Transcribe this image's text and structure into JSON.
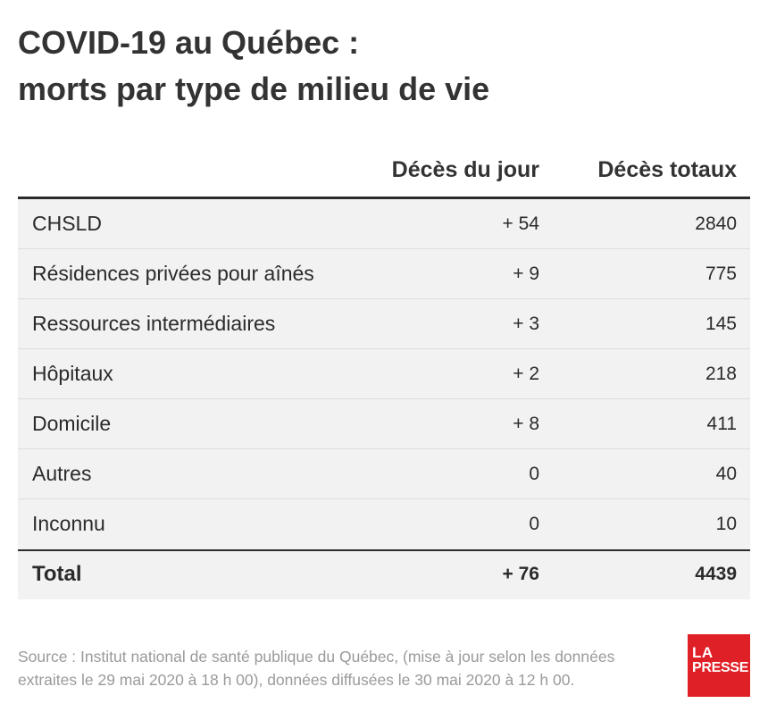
{
  "title": {
    "line1": "COVID-19 au Québec :",
    "line2": "morts par type de milieu de vie"
  },
  "table": {
    "headers": {
      "category": "",
      "daily": "Décès du jour",
      "total": "Décès totaux"
    },
    "rows": [
      {
        "label": "CHSLD",
        "daily": "+ 54",
        "total": "2840"
      },
      {
        "label": "Résidences privées pour aînés",
        "daily": "+ 9",
        "total": "775"
      },
      {
        "label": "Ressources intermédiaires",
        "daily": "+ 3",
        "total": "145"
      },
      {
        "label": "Hôpitaux",
        "daily": "+ 2",
        "total": "218"
      },
      {
        "label": "Domicile",
        "daily": "+ 8",
        "total": "411"
      },
      {
        "label": "Autres",
        "daily": "0",
        "total": "40"
      },
      {
        "label": "Inconnu",
        "daily": "0",
        "total": "10"
      }
    ],
    "total_row": {
      "label": "Total",
      "daily": "+ 76",
      "total": "4439"
    }
  },
  "footer": {
    "source": "Source : Institut national de santé publique du Québec, (mise à jour selon les données extraites le 29 mai 2020 à 18 h 00), données diffusées le 30 mai 2020 à 12 h 00."
  },
  "logo": {
    "line1": "LA",
    "line2": "PRESSE",
    "color": "#e02027"
  },
  "colors": {
    "text": "#2b2b2b",
    "row_shade": "#f2f2f2",
    "source_text": "#9a9a9a"
  }
}
